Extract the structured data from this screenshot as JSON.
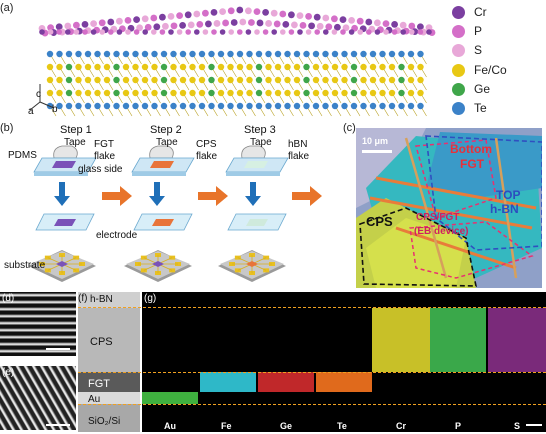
{
  "panels": {
    "a": "(a)",
    "b": "(b)",
    "c": "(c)",
    "d": "(d)",
    "e": "(e)",
    "f": "(f)",
    "g": "(g)"
  },
  "legend": [
    {
      "label": "Cr",
      "color": "#7b3fa0"
    },
    {
      "label": "P",
      "color": "#d46fc8"
    },
    {
      "label": "S",
      "color": "#e8a8d8"
    },
    {
      "label": "Fe/Co",
      "color": "#e8c814"
    },
    {
      "label": "Ge",
      "color": "#3fa64a"
    },
    {
      "label": "Te",
      "color": "#3b82c8"
    }
  ],
  "axes": {
    "a": "a",
    "b": "b",
    "c": "c"
  },
  "steps": {
    "step1": {
      "title": "Step 1",
      "tape": "Tape",
      "flake": "FGT",
      "flake2": "flake",
      "pdms": "PDMS",
      "glass": "glass side"
    },
    "step2": {
      "title": "Step 2",
      "tape": "Tape",
      "flake": "CPS",
      "flake2": "flake"
    },
    "step3": {
      "title": "Step 3",
      "tape": "Tape",
      "flake": "hBN",
      "flake2": "flake"
    },
    "electrode": "electrode",
    "substrate": "substrate"
  },
  "micro": {
    "scale": "10 μm",
    "bottom": "Bottom",
    "fgt": "FGT",
    "top": "TOP",
    "hbn": "h-BN",
    "cps": "CPS",
    "cps_fgt": "CPS/FGT",
    "device": "(EB device)"
  },
  "stack": {
    "hbn": "h-BN",
    "cps": "CPS",
    "fgt": "FGT",
    "au": "Au",
    "sio2": "SiO₂/Si"
  },
  "eds": [
    "Au",
    "Fe",
    "Ge",
    "Te",
    "Cr",
    "P",
    "S"
  ]
}
